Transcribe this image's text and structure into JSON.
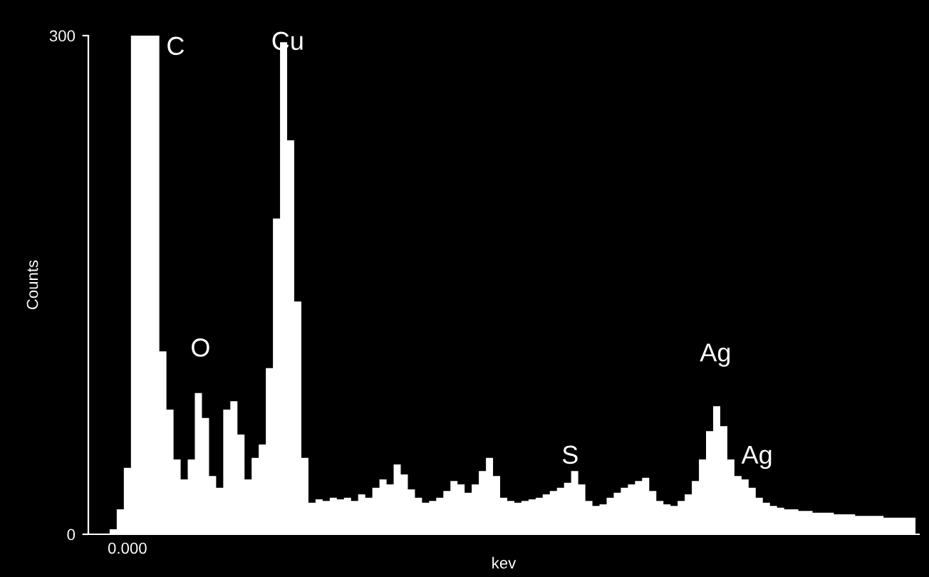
{
  "chart_data": {
    "type": "area",
    "xlabel": "kev",
    "ylabel": "Counts",
    "categories": [
      null,
      null,
      null,
      null,
      null,
      "0.000",
      null,
      null,
      null,
      null,
      null,
      null,
      null,
      null,
      null,
      null,
      null,
      null,
      null,
      null,
      null,
      null,
      null,
      null,
      null,
      null,
      null,
      null,
      null,
      null,
      null,
      null,
      null,
      null,
      null,
      null,
      null,
      null,
      null,
      null,
      null,
      null,
      null,
      null,
      null,
      null,
      null,
      null,
      null,
      null,
      null,
      null,
      null,
      null,
      null,
      null,
      null,
      null,
      null,
      null,
      null,
      null,
      null,
      null,
      null,
      null,
      null,
      null,
      null,
      null,
      null,
      null,
      null,
      null,
      null,
      null,
      null,
      null,
      null,
      null,
      null,
      null,
      null,
      null,
      null,
      null,
      null,
      null,
      null,
      null,
      null,
      null,
      null,
      null,
      null,
      null,
      null,
      null,
      null,
      null,
      null,
      null,
      null,
      null,
      null,
      null,
      null,
      null,
      null,
      null,
      null,
      null,
      null,
      null,
      null,
      null,
      null
    ],
    "series": [
      {
        "color": "#ffffff",
        "values": [
          0,
          0,
          0,
          3,
          15,
          40,
          300,
          300,
          300,
          300,
          110,
          75,
          45,
          33,
          45,
          85,
          70,
          35,
          28,
          75,
          80,
          60,
          33,
          46,
          54,
          100,
          190,
          296,
          237,
          140,
          46,
          19,
          21,
          20,
          22,
          21,
          22,
          20,
          24,
          22,
          28,
          33,
          30,
          42,
          36,
          27,
          22,
          19,
          20,
          22,
          26,
          32,
          30,
          25,
          30,
          38,
          46,
          35,
          22,
          20,
          19,
          20,
          21,
          22,
          24,
          26,
          28,
          31,
          38,
          30,
          20,
          17,
          18,
          22,
          25,
          28,
          30,
          32,
          34,
          26,
          20,
          18,
          17,
          20,
          24,
          32,
          45,
          62,
          77,
          65,
          45,
          35,
          33,
          28,
          22,
          19,
          17,
          16,
          15,
          15,
          14,
          14,
          13,
          13,
          13,
          12,
          12,
          12,
          11,
          11,
          11,
          11,
          10,
          10,
          10,
          10,
          10
        ]
      }
    ],
    "ylim": [
      0,
      300
    ],
    "yticks": [
      0,
      300
    ],
    "annotations": [
      "C",
      "Cu",
      "O",
      "S",
      "Ag",
      "Ag"
    ],
    "grid": false,
    "legend": false
  }
}
